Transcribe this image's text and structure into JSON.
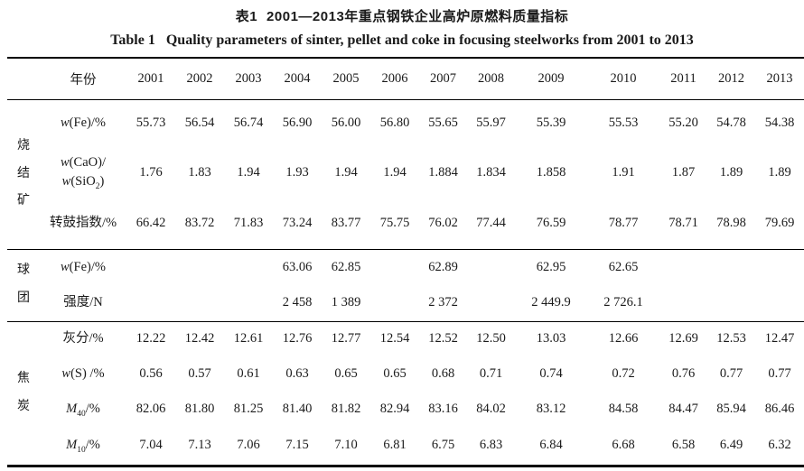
{
  "title_zh": {
    "label": "表1",
    "text": "2001—2013年重点钢铁企业高炉原燃料质量指标"
  },
  "title_en": {
    "label": "Table 1",
    "text": "Quality parameters of sinter, pellet and coke in focusing steelworks from 2001 to 2013"
  },
  "table": {
    "year_header": "年份",
    "years": [
      "2001",
      "2002",
      "2003",
      "2004",
      "2005",
      "2006",
      "2007",
      "2008",
      "2009",
      "2010",
      "2011",
      "2012",
      "2013"
    ],
    "sections": [
      {
        "group": "烧结矿",
        "rows": [
          {
            "param": "w(Fe)/%",
            "values": [
              "55.73",
              "56.54",
              "56.74",
              "56.90",
              "56.00",
              "56.80",
              "55.65",
              "55.97",
              "55.39",
              "55.53",
              "55.20",
              "54.78",
              "54.38"
            ]
          },
          {
            "param": "w(CaO)/w(SiO2)",
            "values": [
              "1.76",
              "1.83",
              "1.94",
              "1.93",
              "1.94",
              "1.94",
              "1.884",
              "1.834",
              "1.858",
              "1.91",
              "1.87",
              "1.89",
              "1.89"
            ]
          },
          {
            "param": "转鼓指数/%",
            "values": [
              "66.42",
              "83.72",
              "71.83",
              "73.24",
              "83.77",
              "75.75",
              "76.02",
              "77.44",
              "76.59",
              "78.77",
              "78.71",
              "78.98",
              "79.69"
            ]
          }
        ]
      },
      {
        "group": "球团",
        "rows": [
          {
            "param": "w(Fe)/%",
            "values": [
              "",
              "",
              "",
              "63.06",
              "62.85",
              "",
              "62.89",
              "",
              "62.95",
              "62.65",
              "",
              "",
              ""
            ]
          },
          {
            "param": "强度/N",
            "values": [
              "",
              "",
              "",
              "2 458",
              "1 389",
              "",
              "2 372",
              "",
              "2 449.9",
              "2 726.1",
              "",
              "",
              ""
            ]
          }
        ]
      },
      {
        "group": "焦炭",
        "rows": [
          {
            "param": "灰分/%",
            "values": [
              "12.22",
              "12.42",
              "12.61",
              "12.76",
              "12.77",
              "12.54",
              "12.52",
              "12.50",
              "13.03",
              "12.66",
              "12.69",
              "12.53",
              "12.47"
            ]
          },
          {
            "param": "w(S) /%",
            "values": [
              "0.56",
              "0.57",
              "0.61",
              "0.63",
              "0.65",
              "0.65",
              "0.68",
              "0.71",
              "0.74",
              "0.72",
              "0.76",
              "0.77",
              "0.77"
            ]
          },
          {
            "param": "M40/%",
            "values": [
              "82.06",
              "81.80",
              "81.25",
              "81.40",
              "81.82",
              "82.94",
              "83.16",
              "84.02",
              "83.12",
              "84.58",
              "84.47",
              "85.94",
              "86.46"
            ]
          },
          {
            "param": "M10/%",
            "values": [
              "7.04",
              "7.13",
              "7.06",
              "7.15",
              "7.10",
              "6.81",
              "6.75",
              "6.83",
              "6.84",
              "6.68",
              "6.58",
              "6.49",
              "6.32"
            ]
          }
        ]
      }
    ]
  }
}
